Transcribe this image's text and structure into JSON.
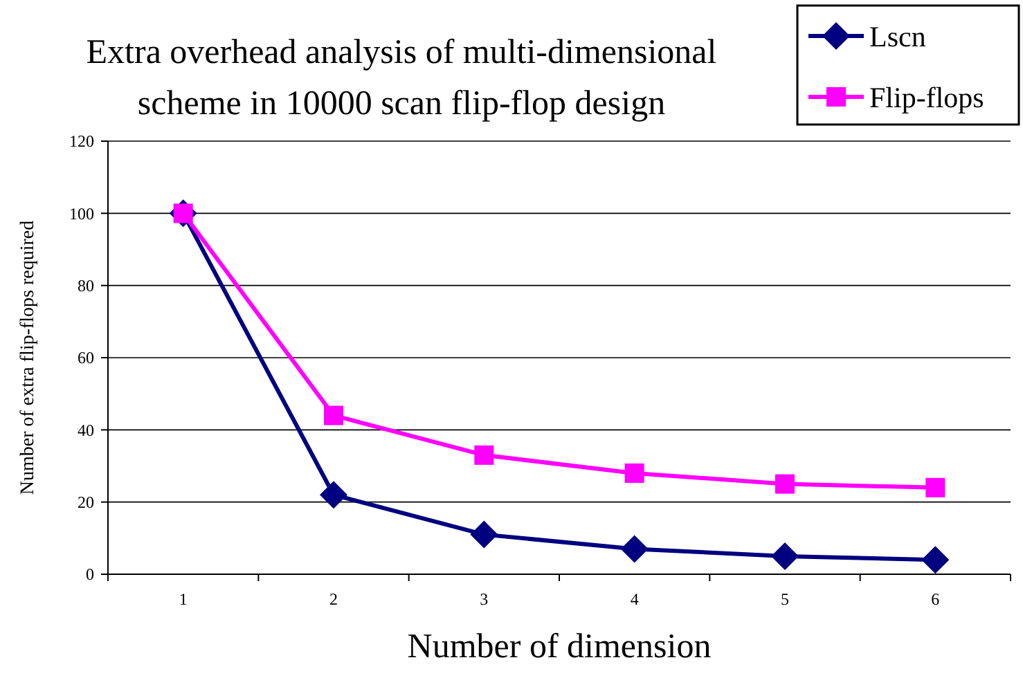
{
  "chart_data": {
    "type": "line",
    "title": "Extra overhead analysis of multi-dimensional\nscheme in 10000 scan flip-flop design",
    "xlabel": "Number of dimension",
    "ylabel": "Number of extra flip-flops required",
    "categories": [
      "1",
      "2",
      "3",
      "4",
      "5",
      "6"
    ],
    "ylim": [
      0,
      120
    ],
    "yticks": [
      0,
      20,
      40,
      60,
      80,
      100,
      120
    ],
    "grid": "y",
    "legend": "top right",
    "line_style": "solid",
    "series": [
      {
        "name": "Lscn",
        "color": "#000080",
        "marker": "diamond",
        "values": [
          100,
          22,
          11,
          7,
          5,
          4
        ]
      },
      {
        "name": "Flip-flops",
        "color": "#ff00ff",
        "marker": "square",
        "values": [
          100,
          44,
          33,
          28,
          25,
          24
        ]
      }
    ]
  }
}
